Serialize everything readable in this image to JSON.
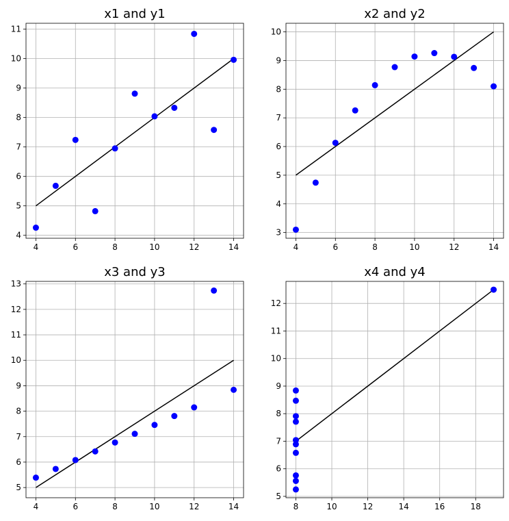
{
  "colors": {
    "points": "#0000ff",
    "fit_line": "#000000",
    "grid": "#b0b0b0",
    "axes": "#000000",
    "background": "#ffffff"
  },
  "chart_data": [
    {
      "type": "scatter",
      "title": "x1 and y1",
      "xlabel": "",
      "ylabel": "",
      "xlim": [
        3.5,
        14.5
      ],
      "ylim": [
        3.9,
        11.2
      ],
      "xticks": [
        4,
        6,
        8,
        10,
        12,
        14
      ],
      "yticks": [
        4,
        5,
        6,
        7,
        8,
        9,
        10,
        11
      ],
      "grid": true,
      "x": [
        10,
        8,
        13,
        9,
        11,
        14,
        6,
        4,
        12,
        7,
        5
      ],
      "y": [
        8.04,
        6.95,
        7.58,
        8.81,
        8.33,
        9.96,
        7.24,
        4.26,
        10.84,
        4.82,
        5.68
      ],
      "fit_line": {
        "x": [
          4,
          14
        ],
        "y": [
          5,
          10
        ]
      }
    },
    {
      "type": "scatter",
      "title": "x2 and y2",
      "xlabel": "",
      "ylabel": "",
      "xlim": [
        3.5,
        14.5
      ],
      "ylim": [
        2.8,
        10.3
      ],
      "xticks": [
        4,
        6,
        8,
        10,
        12,
        14
      ],
      "yticks": [
        3,
        4,
        5,
        6,
        7,
        8,
        9,
        10
      ],
      "grid": true,
      "x": [
        10,
        8,
        13,
        9,
        11,
        14,
        6,
        4,
        12,
        7,
        5
      ],
      "y": [
        9.14,
        8.14,
        8.74,
        8.77,
        9.26,
        8.1,
        6.13,
        3.1,
        9.13,
        7.26,
        4.74
      ],
      "fit_line": {
        "x": [
          4,
          14
        ],
        "y": [
          5,
          10
        ]
      }
    },
    {
      "type": "scatter",
      "title": "x3 and y3",
      "xlabel": "",
      "ylabel": "",
      "xlim": [
        3.5,
        14.5
      ],
      "ylim": [
        4.6,
        13.1
      ],
      "xticks": [
        4,
        6,
        8,
        10,
        12,
        14
      ],
      "yticks": [
        5,
        6,
        7,
        8,
        9,
        10,
        11,
        12,
        13
      ],
      "grid": true,
      "x": [
        10,
        8,
        13,
        9,
        11,
        14,
        6,
        4,
        12,
        7,
        5
      ],
      "y": [
        7.46,
        6.77,
        12.74,
        7.11,
        7.81,
        8.84,
        6.08,
        5.39,
        8.15,
        6.42,
        5.73
      ],
      "fit_line": {
        "x": [
          4,
          14
        ],
        "y": [
          5,
          10
        ]
      }
    },
    {
      "type": "scatter",
      "title": "x4 and y4",
      "xlabel": "",
      "ylabel": "",
      "xlim": [
        7.45,
        19.55
      ],
      "ylim": [
        4.95,
        12.8
      ],
      "xticks": [
        8,
        10,
        12,
        14,
        16,
        18
      ],
      "yticks": [
        5,
        6,
        7,
        8,
        9,
        10,
        11,
        12
      ],
      "grid": true,
      "x": [
        8,
        8,
        8,
        8,
        8,
        8,
        8,
        19,
        8,
        8,
        8
      ],
      "y": [
        6.58,
        5.76,
        7.71,
        8.84,
        8.47,
        7.04,
        5.25,
        12.5,
        5.56,
        7.91,
        6.89
      ],
      "fit_line": {
        "x": [
          8,
          19
        ],
        "y": [
          7.0,
          12.5
        ]
      }
    }
  ]
}
